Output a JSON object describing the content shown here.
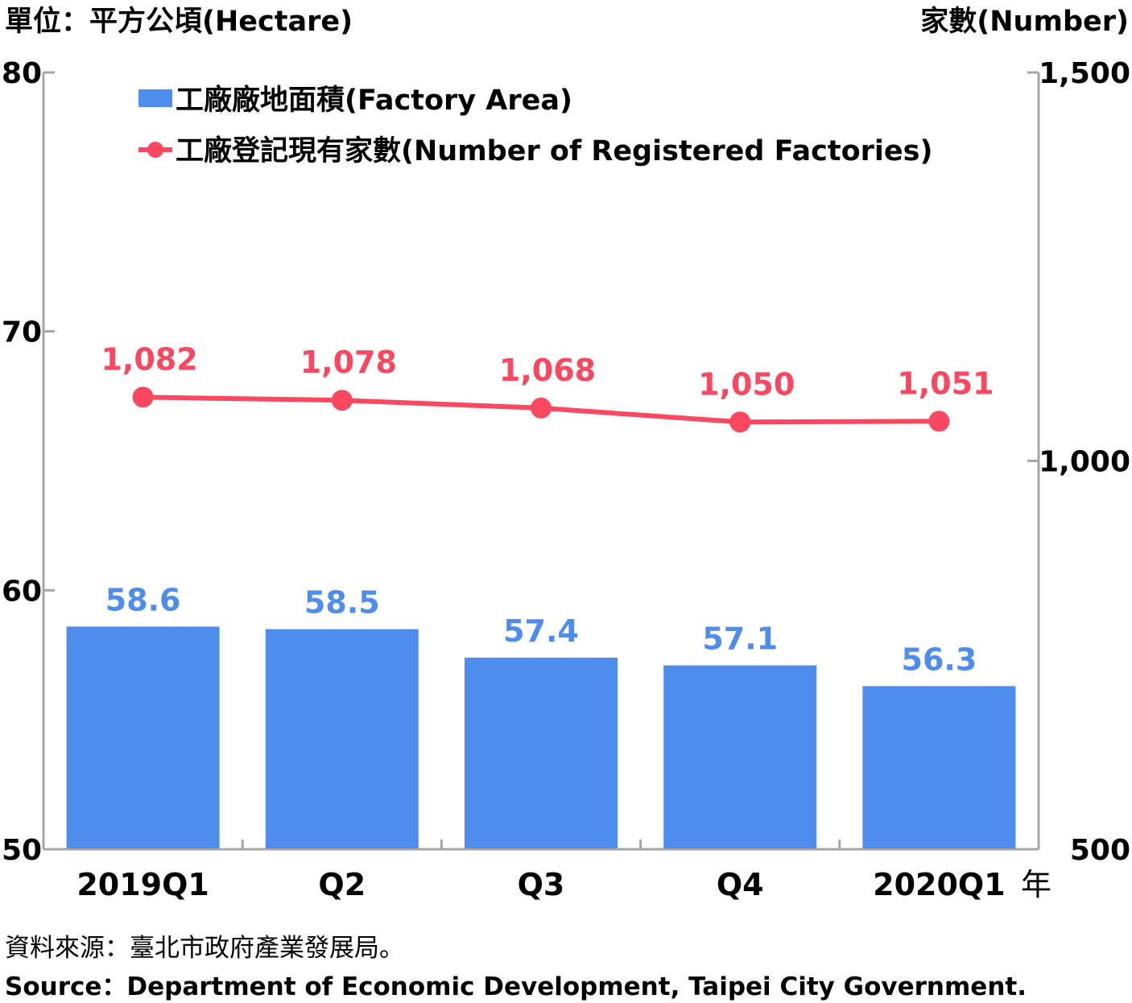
{
  "chart_data": {
    "type": "bar+line",
    "categories": [
      "2019Q1",
      "Q2",
      "Q3",
      "Q4",
      "2020Q1"
    ],
    "x_unit_label": "年",
    "left_axis": {
      "unit_label": "單位：平方公頃(Hectare)",
      "min": 50,
      "max": 80,
      "ticks": [
        "80",
        "70",
        "60",
        "50"
      ]
    },
    "right_axis": {
      "unit_label": "家數(Number)",
      "min": 500,
      "max": 1500,
      "ticks": [
        "1,500",
        "1,000",
        "500"
      ]
    },
    "series": [
      {
        "name": "工廠廠地面積(Factory Area)",
        "type": "bar",
        "axis": "left",
        "color": "#4f8ded",
        "values": [
          58.6,
          58.5,
          57.4,
          57.1,
          56.3
        ],
        "labels": [
          "58.6",
          "58.5",
          "57.4",
          "57.1",
          "56.3"
        ]
      },
      {
        "name": "工廠登記現有家數(Number of Registered Factories)",
        "type": "line",
        "axis": "right",
        "color": "#f9485f",
        "values": [
          1082,
          1078,
          1068,
          1050,
          1051
        ],
        "labels": [
          "1,082",
          "1,078",
          "1,068",
          "1,050",
          "1,051"
        ]
      }
    ],
    "legend_position": "top-left",
    "grid": false
  },
  "footer": {
    "source_zh": "資料來源：臺北市政府產業發展局。",
    "source_en": "Source：Department of Economic Development, Taipei City Government."
  }
}
